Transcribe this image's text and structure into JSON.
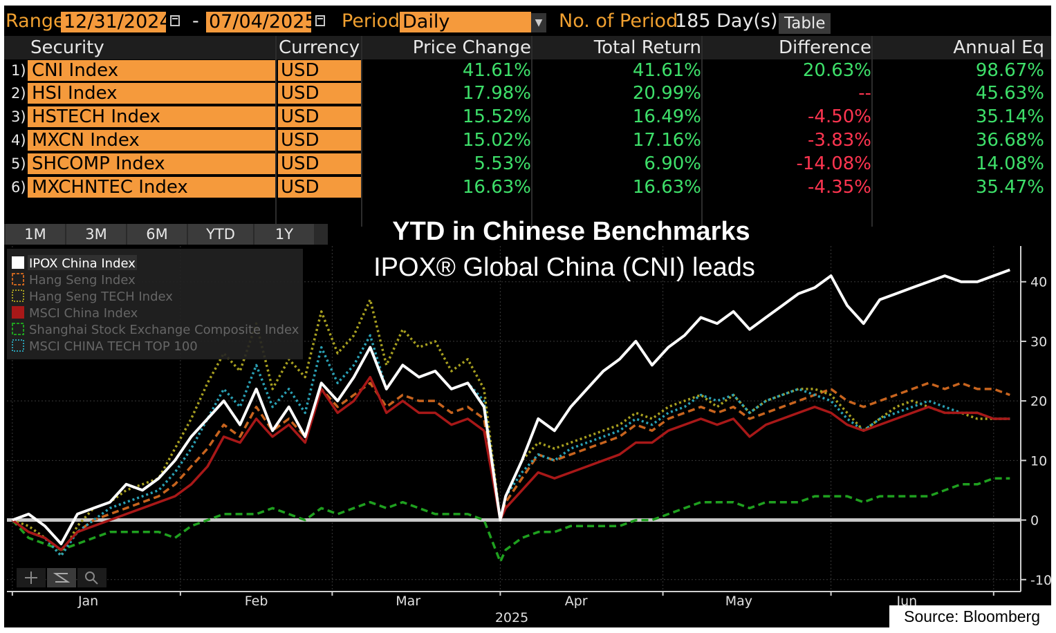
{
  "toolbar": {
    "range_label": "Range",
    "range_start": "12/31/2024",
    "range_dash": "-",
    "range_end": "07/04/2025",
    "period_label": "Period",
    "period_value": "Daily",
    "num_period_label": "No. of Period",
    "num_period_value": "185 Day(s)",
    "table_button": "Table"
  },
  "table": {
    "headers": {
      "security": "Security",
      "currency": "Currency",
      "price_change": "Price Change",
      "total_return": "Total Return",
      "difference": "Difference",
      "annual_eq": "Annual Eq"
    },
    "rows": [
      {
        "num": "1)",
        "security": "CNI Index",
        "currency": "USD",
        "price_change": "41.61%",
        "total_return": "41.61%",
        "difference": "20.63%",
        "annual_eq": "98.67%"
      },
      {
        "num": "2)",
        "security": "HSI Index",
        "currency": "USD",
        "price_change": "17.98%",
        "total_return": "20.99%",
        "difference": "--",
        "annual_eq": "45.63%"
      },
      {
        "num": "3)",
        "security": "HSTECH Index",
        "currency": "USD",
        "price_change": "15.52%",
        "total_return": "16.49%",
        "difference": "-4.50%",
        "annual_eq": "35.14%"
      },
      {
        "num": "4)",
        "security": "MXCN Index",
        "currency": "USD",
        "price_change": "15.02%",
        "total_return": "17.16%",
        "difference": "-3.83%",
        "annual_eq": "36.68%"
      },
      {
        "num": "5)",
        "security": "SHCOMP Index",
        "currency": "USD",
        "price_change": "5.53%",
        "total_return": "6.90%",
        "difference": "-14.08%",
        "annual_eq": "14.08%"
      },
      {
        "num": "6)",
        "security": "MXCHNTEC Index",
        "currency": "USD",
        "price_change": "16.63%",
        "total_return": "16.63%",
        "difference": "-4.35%",
        "annual_eq": "35.47%"
      }
    ]
  },
  "period_buttons": [
    "1M",
    "3M",
    "6M",
    "YTD",
    "1Y"
  ],
  "overlay": {
    "title": "YTD in Chinese Benchmarks",
    "subtitle": "IPOX® Global China (CNI) leads"
  },
  "source": "Source: Bloomberg",
  "colors": {
    "orange_field": "#f59a3c",
    "label_orange": "#f0a030",
    "positive": "#3ee06a",
    "negative": "#ff3550"
  },
  "chart_data": {
    "type": "line",
    "title": "YTD in Chinese Benchmarks",
    "subtitle": "IPOX® Global China (CNI) leads",
    "xlabel": "2025",
    "ylabel": "",
    "x_tick_labels": [
      "Jan",
      "Feb",
      "Mar",
      "Apr",
      "May",
      "Jun"
    ],
    "x_tick_days": [
      14,
      45,
      73,
      104,
      134,
      165
    ],
    "x_divider_days": [
      0,
      31,
      59,
      90,
      120,
      151,
      181
    ],
    "xlim": [
      -1,
      186
    ],
    "ylim": [
      -12,
      46
    ],
    "y_ticks": [
      -10,
      0,
      10,
      20,
      30,
      40
    ],
    "y_tick_labels": [
      "-10",
      "0",
      "10",
      "20",
      "30",
      "40"
    ],
    "grid": true,
    "legend_position": "top-left",
    "series": [
      {
        "name": "IPOX China Index",
        "color": "#ffffff",
        "style": "solid",
        "x": [
          0,
          3,
          6,
          9,
          12,
          15,
          18,
          21,
          24,
          27,
          30,
          33,
          36,
          39,
          42,
          45,
          48,
          51,
          54,
          57,
          60,
          63,
          66,
          69,
          72,
          75,
          78,
          81,
          84,
          87,
          90,
          91,
          94,
          97,
          100,
          103,
          106,
          109,
          112,
          115,
          118,
          121,
          124,
          127,
          130,
          133,
          136,
          139,
          142,
          145,
          148,
          151,
          154,
          157,
          160,
          163,
          166,
          169,
          172,
          175,
          178,
          181,
          184
        ],
        "values": [
          0,
          1,
          -1,
          -4,
          1,
          2,
          3,
          6,
          5,
          7,
          10,
          14,
          17,
          20,
          16,
          22,
          15,
          19,
          14,
          23,
          20,
          24,
          29,
          22,
          26,
          24,
          25,
          22,
          23,
          19,
          0,
          4,
          10,
          17,
          15,
          19,
          22,
          25,
          27,
          30,
          26,
          29,
          31,
          34,
          33,
          35,
          32,
          34,
          36,
          38,
          39,
          41,
          36,
          33,
          37,
          38,
          39,
          40,
          41,
          40,
          40,
          41,
          42
        ]
      },
      {
        "name": "Hang Seng Index",
        "color": "#c8641e",
        "style": "dashed",
        "x": [
          0,
          3,
          6,
          9,
          12,
          15,
          18,
          21,
          24,
          27,
          30,
          33,
          36,
          39,
          42,
          45,
          48,
          51,
          54,
          57,
          60,
          63,
          66,
          69,
          72,
          75,
          78,
          81,
          84,
          87,
          90,
          91,
          94,
          97,
          100,
          103,
          106,
          109,
          112,
          115,
          118,
          121,
          124,
          127,
          130,
          133,
          136,
          139,
          142,
          145,
          148,
          151,
          154,
          157,
          160,
          163,
          166,
          169,
          172,
          175,
          178,
          181,
          184
        ],
        "values": [
          0,
          -2,
          -3,
          -5,
          -2,
          0,
          1,
          2,
          3,
          4,
          6,
          9,
          12,
          16,
          14,
          19,
          15,
          17,
          14,
          22,
          19,
          21,
          23,
          19,
          21,
          20,
          20,
          18,
          19,
          17,
          0,
          3,
          7,
          11,
          10,
          11,
          12,
          13,
          14,
          16,
          15,
          17,
          18,
          19,
          18,
          19,
          17,
          18,
          19,
          20,
          21,
          22,
          20,
          19,
          20,
          21,
          22,
          23,
          22,
          23,
          22,
          22,
          21
        ]
      },
      {
        "name": "Hang Seng TECH Index",
        "color": "#a8a020",
        "style": "dotted",
        "x": [
          0,
          3,
          6,
          9,
          12,
          15,
          18,
          21,
          24,
          27,
          30,
          33,
          36,
          39,
          42,
          45,
          48,
          51,
          54,
          57,
          60,
          63,
          66,
          69,
          72,
          75,
          78,
          81,
          84,
          87,
          90,
          91,
          94,
          97,
          100,
          103,
          106,
          109,
          112,
          115,
          118,
          121,
          124,
          127,
          130,
          133,
          136,
          139,
          142,
          145,
          148,
          151,
          154,
          157,
          160,
          163,
          166,
          169,
          172,
          175,
          178,
          181,
          184
        ],
        "values": [
          0,
          -1,
          -3,
          -6,
          -1,
          2,
          3,
          5,
          6,
          7,
          12,
          17,
          23,
          28,
          25,
          33,
          22,
          27,
          24,
          35,
          28,
          31,
          37,
          26,
          32,
          29,
          30,
          25,
          27,
          22,
          0,
          4,
          10,
          13,
          12,
          13,
          14,
          15,
          16,
          18,
          17,
          19,
          20,
          21,
          19,
          21,
          18,
          20,
          21,
          22,
          22,
          21,
          18,
          15,
          17,
          19,
          20,
          19,
          18,
          18,
          17,
          17,
          17
        ]
      },
      {
        "name": "MSCI China Index",
        "color": "#a81818",
        "style": "solid",
        "x": [
          0,
          3,
          6,
          9,
          12,
          15,
          18,
          21,
          24,
          27,
          30,
          33,
          36,
          39,
          42,
          45,
          48,
          51,
          54,
          57,
          60,
          63,
          66,
          69,
          72,
          75,
          78,
          81,
          84,
          87,
          90,
          91,
          94,
          97,
          100,
          103,
          106,
          109,
          112,
          115,
          118,
          121,
          124,
          127,
          130,
          133,
          136,
          139,
          142,
          145,
          148,
          151,
          154,
          157,
          160,
          163,
          166,
          169,
          172,
          175,
          178,
          181,
          184
        ],
        "values": [
          0,
          -2,
          -3,
          -5,
          -2,
          -1,
          0,
          1,
          2,
          3,
          4,
          6,
          9,
          14,
          13,
          17,
          14,
          16,
          13,
          22,
          18,
          20,
          24,
          18,
          20,
          18,
          18,
          16,
          17,
          15,
          0,
          2,
          5,
          8,
          7,
          8,
          9,
          10,
          11,
          13,
          13,
          15,
          16,
          17,
          16,
          17,
          14,
          16,
          17,
          18,
          19,
          18,
          16,
          15,
          16,
          17,
          18,
          19,
          18,
          18,
          18,
          17,
          17
        ]
      },
      {
        "name": "Shanghai Stock Exchange Composite Index",
        "color": "#1fa01f",
        "style": "dashed",
        "x": [
          0,
          3,
          6,
          9,
          12,
          15,
          18,
          21,
          24,
          27,
          30,
          33,
          36,
          39,
          42,
          45,
          48,
          51,
          54,
          57,
          60,
          63,
          66,
          69,
          72,
          75,
          78,
          81,
          84,
          87,
          90,
          91,
          94,
          97,
          100,
          103,
          106,
          109,
          112,
          115,
          118,
          121,
          124,
          127,
          130,
          133,
          136,
          139,
          142,
          145,
          148,
          151,
          154,
          157,
          160,
          163,
          166,
          169,
          172,
          175,
          178,
          181,
          184
        ],
        "values": [
          0,
          -3,
          -4,
          -5,
          -4,
          -3,
          -2,
          -2,
          -2,
          -2,
          -3,
          -1,
          0,
          1,
          1,
          1,
          2,
          1,
          0,
          2,
          1,
          2,
          3,
          2,
          3,
          2,
          1,
          1,
          1,
          0,
          -7,
          -5,
          -3,
          -2,
          -2,
          -1,
          -1,
          -1,
          -1,
          0,
          0,
          1,
          2,
          3,
          3,
          3,
          2,
          3,
          3,
          3,
          4,
          4,
          4,
          3,
          4,
          4,
          4,
          4,
          5,
          6,
          6,
          7,
          7
        ]
      },
      {
        "name": "MSCI CHINA TECH TOP 100",
        "color": "#2aa0b4",
        "style": "dotted",
        "x": [
          0,
          3,
          6,
          9,
          12,
          15,
          18,
          21,
          24,
          27,
          30,
          33,
          36,
          39,
          42,
          45,
          48,
          51,
          54,
          57,
          60,
          63,
          66,
          69,
          72,
          75,
          78,
          81,
          84,
          87,
          90,
          91,
          94,
          97,
          100,
          103,
          106,
          109,
          112,
          115,
          118,
          121,
          124,
          127,
          130,
          133,
          136,
          139,
          142,
          145,
          148,
          151,
          154,
          157,
          160,
          163,
          166,
          169,
          172,
          175,
          178,
          181,
          184
        ],
        "values": [
          0,
          -2,
          -3,
          -6,
          -2,
          0,
          2,
          3,
          4,
          5,
          8,
          12,
          17,
          22,
          19,
          26,
          19,
          22,
          18,
          29,
          23,
          26,
          31,
          22,
          26,
          24,
          25,
          22,
          23,
          20,
          0,
          4,
          8,
          11,
          10,
          12,
          13,
          14,
          15,
          17,
          16,
          18,
          19,
          21,
          20,
          21,
          18,
          20,
          21,
          22,
          21,
          20,
          17,
          15,
          17,
          18,
          19,
          20,
          19,
          18,
          18,
          17,
          17
        ]
      }
    ]
  }
}
